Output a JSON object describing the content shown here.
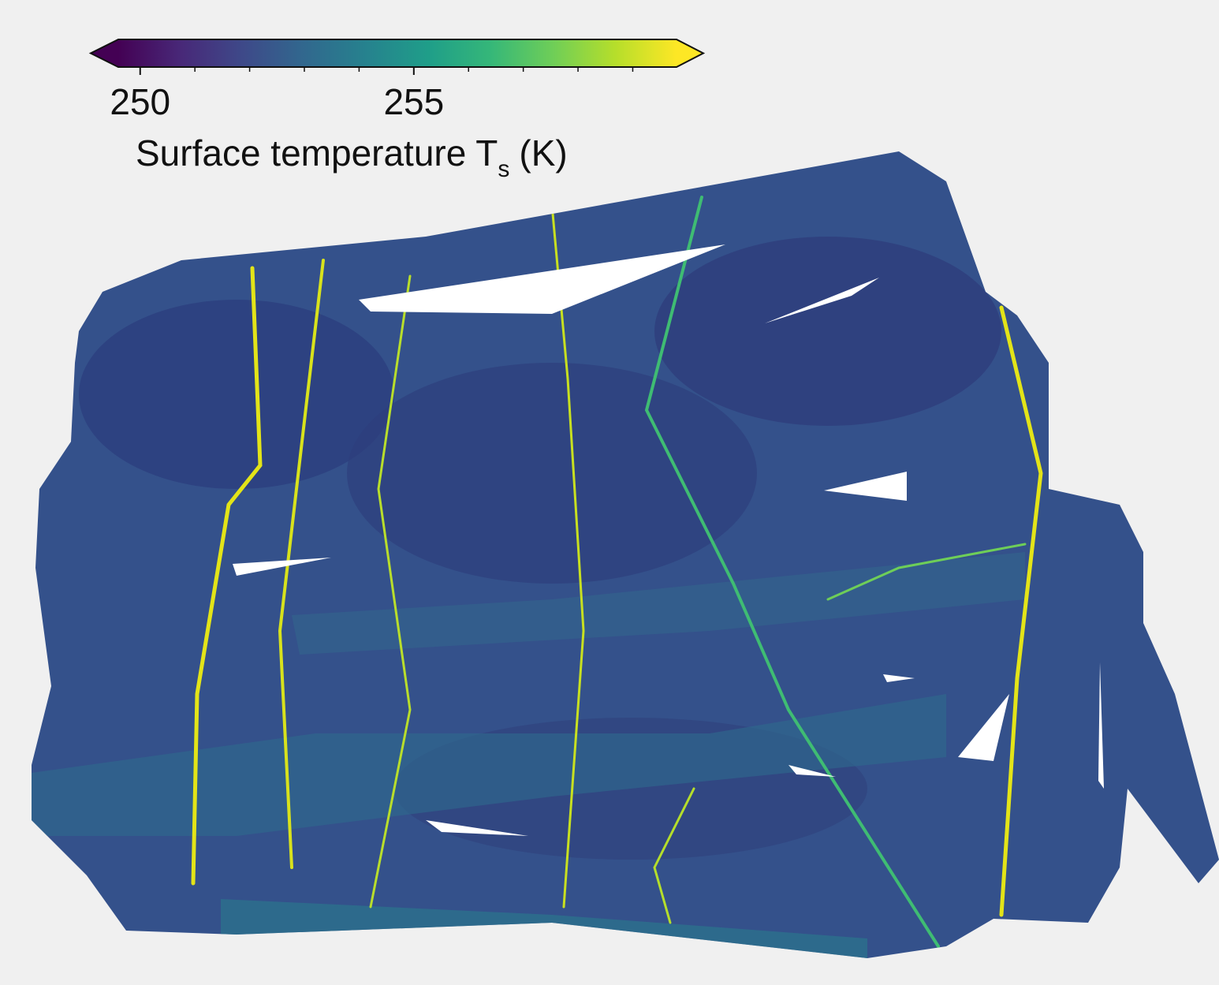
{
  "colorbar": {
    "label_main": "Surface temperature T",
    "label_sub": "s",
    "label_unit": "(K)",
    "vlim": [
      249.6,
      259.8
    ],
    "ticks": [
      250,
      255
    ],
    "minor_ticks": [
      251,
      252,
      253,
      254,
      256,
      257,
      258,
      259
    ],
    "extend": "both",
    "colormap": [
      "#440154",
      "#482878",
      "#3e4989",
      "#31688e",
      "#26828e",
      "#1f9e89",
      "#35b779",
      "#6ece58",
      "#b5de2b",
      "#fde725"
    ]
  }
}
